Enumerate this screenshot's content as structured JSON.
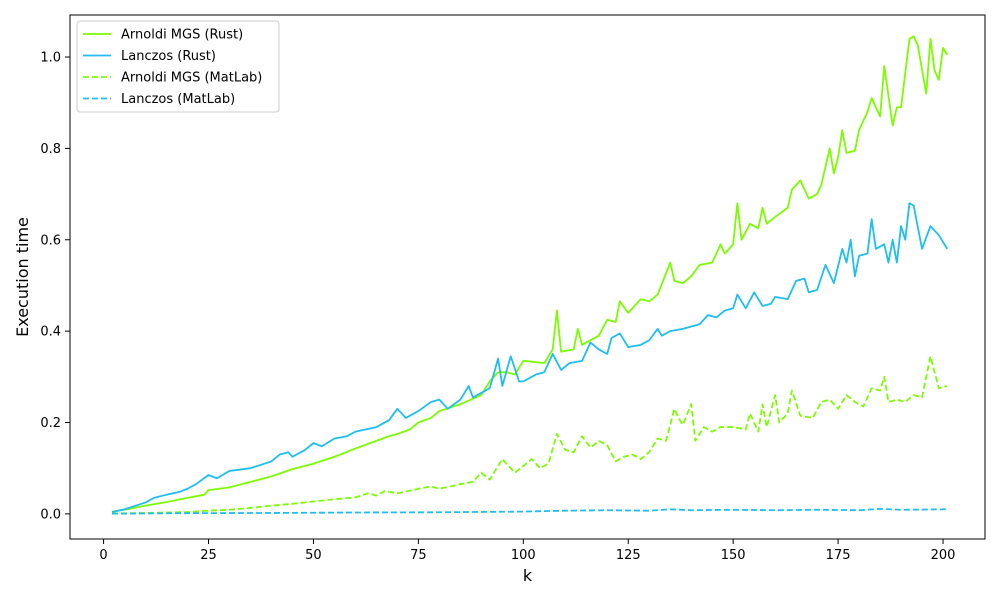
{
  "chart_data": {
    "type": "line",
    "title": "",
    "xlabel": "k",
    "ylabel": "Execution time",
    "xlim": [
      -8,
      210
    ],
    "ylim": [
      -0.055,
      1.092
    ],
    "xticks": [
      0,
      25,
      50,
      75,
      100,
      125,
      150,
      175,
      200
    ],
    "yticks": [
      0.0,
      0.2,
      0.4,
      0.6,
      0.8,
      1.0
    ],
    "xtick_labels": [
      "0",
      "25",
      "50",
      "75",
      "100",
      "125",
      "150",
      "175",
      "200"
    ],
    "ytick_labels": [
      "0.0",
      "0.2",
      "0.4",
      "0.6",
      "0.8",
      "1.0"
    ],
    "grid": false,
    "legend_position": "top-left",
    "series": [
      {
        "name": "Arnoldi MGS (Rust)",
        "color": "#7CFC00",
        "dash": "solid",
        "points": [
          [
            2,
            0.005
          ],
          [
            5,
            0.009
          ],
          [
            10,
            0.018
          ],
          [
            15,
            0.026
          ],
          [
            20,
            0.035
          ],
          [
            24,
            0.042
          ],
          [
            25,
            0.052
          ],
          [
            30,
            0.058
          ],
          [
            35,
            0.07
          ],
          [
            40,
            0.082
          ],
          [
            45,
            0.098
          ],
          [
            48,
            0.105
          ],
          [
            50,
            0.11
          ],
          [
            55,
            0.125
          ],
          [
            60,
            0.143
          ],
          [
            65,
            0.16
          ],
          [
            68,
            0.17
          ],
          [
            70,
            0.175
          ],
          [
            73,
            0.185
          ],
          [
            75,
            0.2
          ],
          [
            78,
            0.21
          ],
          [
            80,
            0.225
          ],
          [
            85,
            0.24
          ],
          [
            90,
            0.26
          ],
          [
            92,
            0.29
          ],
          [
            94,
            0.31
          ],
          [
            96,
            0.31
          ],
          [
            98,
            0.305
          ],
          [
            100,
            0.335
          ],
          [
            105,
            0.33
          ],
          [
            107,
            0.36
          ],
          [
            108,
            0.445
          ],
          [
            109,
            0.355
          ],
          [
            112,
            0.36
          ],
          [
            113,
            0.405
          ],
          [
            114,
            0.37
          ],
          [
            118,
            0.39
          ],
          [
            120,
            0.425
          ],
          [
            122,
            0.42
          ],
          [
            123,
            0.465
          ],
          [
            125,
            0.44
          ],
          [
            128,
            0.47
          ],
          [
            130,
            0.465
          ],
          [
            132,
            0.48
          ],
          [
            135,
            0.55
          ],
          [
            136,
            0.51
          ],
          [
            138,
            0.505
          ],
          [
            140,
            0.52
          ],
          [
            142,
            0.545
          ],
          [
            145,
            0.55
          ],
          [
            147,
            0.59
          ],
          [
            148,
            0.57
          ],
          [
            150,
            0.59
          ],
          [
            151,
            0.68
          ],
          [
            152,
            0.6
          ],
          [
            154,
            0.635
          ],
          [
            156,
            0.625
          ],
          [
            157,
            0.67
          ],
          [
            158,
            0.635
          ],
          [
            160,
            0.65
          ],
          [
            163,
            0.67
          ],
          [
            164,
            0.71
          ],
          [
            166,
            0.73
          ],
          [
            168,
            0.69
          ],
          [
            170,
            0.7
          ],
          [
            171,
            0.72
          ],
          [
            173,
            0.8
          ],
          [
            174,
            0.745
          ],
          [
            175,
            0.78
          ],
          [
            176,
            0.84
          ],
          [
            177,
            0.79
          ],
          [
            179,
            0.795
          ],
          [
            180,
            0.84
          ],
          [
            182,
            0.88
          ],
          [
            183,
            0.91
          ],
          [
            185,
            0.87
          ],
          [
            186,
            0.98
          ],
          [
            188,
            0.85
          ],
          [
            189,
            0.89
          ],
          [
            190,
            0.89
          ],
          [
            192,
            1.04
          ],
          [
            193,
            1.045
          ],
          [
            194,
            1.025
          ],
          [
            196,
            0.92
          ],
          [
            197,
            1.04
          ],
          [
            198,
            0.97
          ],
          [
            199,
            0.95
          ],
          [
            200,
            1.02
          ],
          [
            201,
            1.005
          ]
        ]
      },
      {
        "name": "Lanczos (Rust)",
        "color": "#1EBEF0",
        "dash": "solid",
        "points": [
          [
            2,
            0.004
          ],
          [
            5,
            0.01
          ],
          [
            10,
            0.025
          ],
          [
            12,
            0.035
          ],
          [
            15,
            0.042
          ],
          [
            18,
            0.048
          ],
          [
            20,
            0.055
          ],
          [
            22,
            0.065
          ],
          [
            25,
            0.085
          ],
          [
            27,
            0.078
          ],
          [
            30,
            0.094
          ],
          [
            35,
            0.1
          ],
          [
            40,
            0.115
          ],
          [
            42,
            0.13
          ],
          [
            44,
            0.135
          ],
          [
            45,
            0.125
          ],
          [
            48,
            0.14
          ],
          [
            50,
            0.155
          ],
          [
            52,
            0.148
          ],
          [
            55,
            0.165
          ],
          [
            58,
            0.17
          ],
          [
            60,
            0.18
          ],
          [
            65,
            0.19
          ],
          [
            68,
            0.205
          ],
          [
            70,
            0.23
          ],
          [
            72,
            0.21
          ],
          [
            75,
            0.225
          ],
          [
            78,
            0.245
          ],
          [
            80,
            0.25
          ],
          [
            82,
            0.23
          ],
          [
            85,
            0.25
          ],
          [
            87,
            0.28
          ],
          [
            88,
            0.255
          ],
          [
            90,
            0.265
          ],
          [
            92,
            0.275
          ],
          [
            94,
            0.34
          ],
          [
            95,
            0.28
          ],
          [
            97,
            0.345
          ],
          [
            99,
            0.29
          ],
          [
            100,
            0.29
          ],
          [
            103,
            0.305
          ],
          [
            105,
            0.31
          ],
          [
            107,
            0.35
          ],
          [
            109,
            0.315
          ],
          [
            111,
            0.33
          ],
          [
            114,
            0.335
          ],
          [
            116,
            0.375
          ],
          [
            118,
            0.36
          ],
          [
            120,
            0.35
          ],
          [
            121,
            0.385
          ],
          [
            123,
            0.395
          ],
          [
            125,
            0.365
          ],
          [
            128,
            0.37
          ],
          [
            130,
            0.38
          ],
          [
            132,
            0.405
          ],
          [
            133,
            0.39
          ],
          [
            135,
            0.4
          ],
          [
            138,
            0.405
          ],
          [
            142,
            0.415
          ],
          [
            144,
            0.435
          ],
          [
            146,
            0.43
          ],
          [
            148,
            0.445
          ],
          [
            150,
            0.45
          ],
          [
            151,
            0.48
          ],
          [
            153,
            0.45
          ],
          [
            155,
            0.485
          ],
          [
            157,
            0.455
          ],
          [
            159,
            0.46
          ],
          [
            160,
            0.475
          ],
          [
            163,
            0.47
          ],
          [
            165,
            0.51
          ],
          [
            167,
            0.515
          ],
          [
            168,
            0.485
          ],
          [
            170,
            0.49
          ],
          [
            172,
            0.545
          ],
          [
            174,
            0.505
          ],
          [
            176,
            0.58
          ],
          [
            177,
            0.55
          ],
          [
            178,
            0.6
          ],
          [
            179,
            0.52
          ],
          [
            180,
            0.565
          ],
          [
            182,
            0.57
          ],
          [
            183,
            0.645
          ],
          [
            184,
            0.58
          ],
          [
            186,
            0.59
          ],
          [
            187,
            0.55
          ],
          [
            188,
            0.6
          ],
          [
            189,
            0.55
          ],
          [
            190,
            0.63
          ],
          [
            191,
            0.6
          ],
          [
            192,
            0.68
          ],
          [
            193,
            0.675
          ],
          [
            195,
            0.58
          ],
          [
            197,
            0.63
          ],
          [
            199,
            0.61
          ],
          [
            201,
            0.58
          ]
        ]
      },
      {
        "name": "Arnoldi MGS (MatLab)",
        "color": "#7CFC00",
        "dash": "dashed",
        "points": [
          [
            2,
            0.001
          ],
          [
            10,
            0.002
          ],
          [
            20,
            0.004
          ],
          [
            25,
            0.007
          ],
          [
            30,
            0.009
          ],
          [
            35,
            0.013
          ],
          [
            40,
            0.018
          ],
          [
            45,
            0.022
          ],
          [
            50,
            0.027
          ],
          [
            55,
            0.032
          ],
          [
            60,
            0.036
          ],
          [
            63,
            0.045
          ],
          [
            65,
            0.04
          ],
          [
            67,
            0.05
          ],
          [
            70,
            0.045
          ],
          [
            75,
            0.055
          ],
          [
            78,
            0.06
          ],
          [
            80,
            0.055
          ],
          [
            85,
            0.065
          ],
          [
            88,
            0.07
          ],
          [
            90,
            0.09
          ],
          [
            92,
            0.075
          ],
          [
            95,
            0.12
          ],
          [
            98,
            0.09
          ],
          [
            100,
            0.105
          ],
          [
            102,
            0.12
          ],
          [
            104,
            0.1
          ],
          [
            106,
            0.11
          ],
          [
            108,
            0.175
          ],
          [
            110,
            0.14
          ],
          [
            112,
            0.135
          ],
          [
            114,
            0.17
          ],
          [
            116,
            0.145
          ],
          [
            118,
            0.16
          ],
          [
            120,
            0.15
          ],
          [
            122,
            0.115
          ],
          [
            124,
            0.125
          ],
          [
            126,
            0.13
          ],
          [
            128,
            0.12
          ],
          [
            130,
            0.135
          ],
          [
            132,
            0.165
          ],
          [
            134,
            0.16
          ],
          [
            136,
            0.23
          ],
          [
            137,
            0.21
          ],
          [
            138,
            0.195
          ],
          [
            140,
            0.24
          ],
          [
            141,
            0.16
          ],
          [
            143,
            0.19
          ],
          [
            145,
            0.18
          ],
          [
            147,
            0.19
          ],
          [
            150,
            0.19
          ],
          [
            153,
            0.185
          ],
          [
            154,
            0.22
          ],
          [
            156,
            0.18
          ],
          [
            157,
            0.24
          ],
          [
            158,
            0.19
          ],
          [
            160,
            0.26
          ],
          [
            161,
            0.2
          ],
          [
            163,
            0.22
          ],
          [
            164,
            0.27
          ],
          [
            166,
            0.215
          ],
          [
            169,
            0.21
          ],
          [
            171,
            0.245
          ],
          [
            173,
            0.25
          ],
          [
            175,
            0.23
          ],
          [
            177,
            0.26
          ],
          [
            179,
            0.245
          ],
          [
            181,
            0.235
          ],
          [
            183,
            0.275
          ],
          [
            185,
            0.27
          ],
          [
            186,
            0.3
          ],
          [
            187,
            0.245
          ],
          [
            189,
            0.25
          ],
          [
            191,
            0.245
          ],
          [
            193,
            0.26
          ],
          [
            195,
            0.255
          ],
          [
            197,
            0.345
          ],
          [
            199,
            0.275
          ],
          [
            201,
            0.28
          ]
        ]
      },
      {
        "name": "Lanczos (MatLab)",
        "color": "#1EBEF0",
        "dash": "dashed",
        "points": [
          [
            2,
            0.0005
          ],
          [
            20,
            0.0015
          ],
          [
            40,
            0.002
          ],
          [
            60,
            0.003
          ],
          [
            80,
            0.0035
          ],
          [
            100,
            0.005
          ],
          [
            110,
            0.007
          ],
          [
            120,
            0.008
          ],
          [
            130,
            0.007
          ],
          [
            135,
            0.01
          ],
          [
            140,
            0.008
          ],
          [
            150,
            0.009
          ],
          [
            160,
            0.008
          ],
          [
            170,
            0.009
          ],
          [
            180,
            0.008
          ],
          [
            185,
            0.011
          ],
          [
            190,
            0.009
          ],
          [
            200,
            0.01
          ],
          [
            201,
            0.011
          ]
        ]
      }
    ]
  }
}
